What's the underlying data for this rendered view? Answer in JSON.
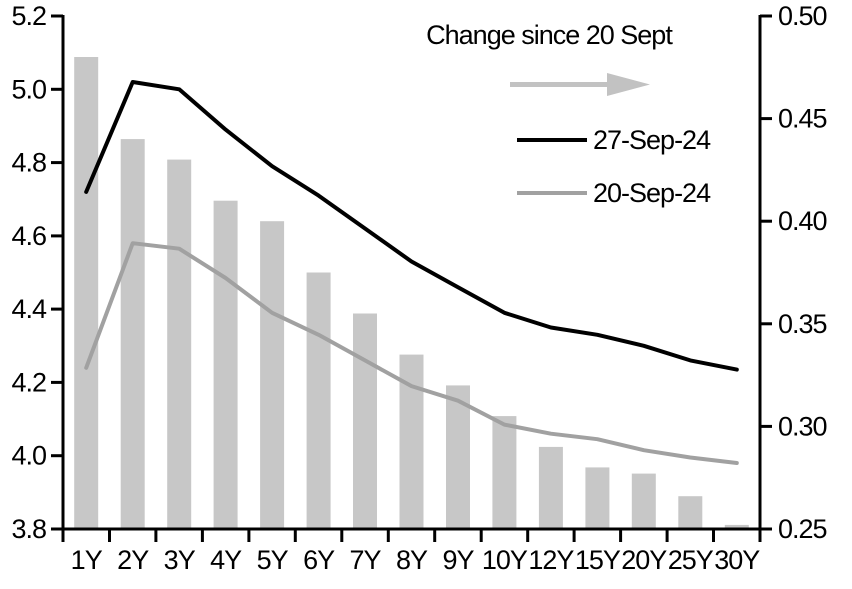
{
  "chart_data": {
    "type": "combo-bar-line",
    "categories": [
      "1Y",
      "2Y",
      "3Y",
      "4Y",
      "5Y",
      "6Y",
      "7Y",
      "8Y",
      "9Y",
      "10Y",
      "12Y",
      "15Y",
      "20Y",
      "25Y",
      "30Y"
    ],
    "series": [
      {
        "name": "27-Sep-24",
        "type": "line",
        "axis": "left",
        "color": "#000000",
        "values": [
          4.72,
          5.02,
          5.0,
          4.89,
          4.79,
          4.71,
          4.62,
          4.53,
          4.46,
          4.39,
          4.35,
          4.33,
          4.3,
          4.26,
          4.235
        ]
      },
      {
        "name": "20-Sep-24",
        "type": "line",
        "axis": "left",
        "color": "#a1a1a1",
        "values": [
          4.24,
          4.58,
          4.565,
          4.485,
          4.39,
          4.33,
          4.26,
          4.19,
          4.15,
          4.085,
          4.06,
          4.045,
          4.015,
          3.995,
          3.98
        ]
      },
      {
        "name": "Change since 20 Sept",
        "type": "bar",
        "axis": "right",
        "color": "#c7c7c7",
        "values": [
          0.48,
          0.44,
          0.43,
          0.41,
          0.4,
          0.375,
          0.355,
          0.335,
          0.32,
          0.305,
          0.29,
          0.28,
          0.277,
          0.266,
          0.252
        ]
      }
    ],
    "left_axis": {
      "min": 3.8,
      "max": 5.2,
      "ticks": [
        "5.2",
        "5.0",
        "4.8",
        "4.6",
        "4.4",
        "4.2",
        "4.0",
        "3.8"
      ],
      "tick_values": [
        5.2,
        5.0,
        4.8,
        4.6,
        4.4,
        4.2,
        4.0,
        3.8
      ]
    },
    "right_axis": {
      "min": 0.25,
      "max": 0.5,
      "ticks": [
        "0.50",
        "0.45",
        "0.40",
        "0.35",
        "0.30",
        "0.25"
      ],
      "tick_values": [
        0.5,
        0.45,
        0.4,
        0.35,
        0.3,
        0.25
      ]
    },
    "legend": {
      "title": "Change since 20 Sept",
      "arrow_icon_color": "#c2c2c2",
      "entries": [
        "27-Sep-24",
        "20-Sep-24"
      ]
    },
    "grid": "off",
    "background": "#ffffff"
  }
}
